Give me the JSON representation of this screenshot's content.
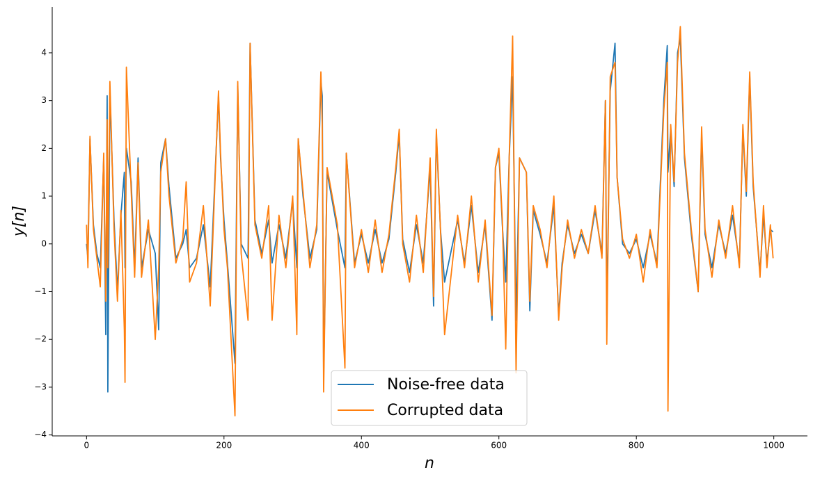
{
  "chart_data": {
    "type": "line",
    "x_label": "n",
    "y_label": "y[n]",
    "x": [
      0,
      2,
      5,
      10,
      15,
      20,
      25,
      28,
      30,
      31,
      34,
      40,
      45,
      50,
      55,
      56,
      58,
      65,
      70,
      75,
      80,
      90,
      100,
      105,
      108,
      115,
      120,
      130,
      140,
      145,
      150,
      160,
      170,
      180,
      192,
      195,
      200,
      205,
      216,
      220,
      225,
      235,
      238,
      245,
      255,
      265,
      270,
      280,
      290,
      300,
      306,
      308,
      315,
      325,
      335,
      341,
      343,
      345,
      350,
      365,
      376,
      378,
      390,
      400,
      410,
      420,
      430,
      440,
      450,
      455,
      460,
      470,
      480,
      490,
      500,
      505,
      509,
      515,
      521,
      540,
      550,
      560,
      570,
      580,
      590,
      595,
      600,
      605,
      610,
      615,
      620,
      625,
      630,
      640,
      645,
      650,
      660,
      670,
      680,
      687,
      692,
      700,
      710,
      720,
      730,
      740,
      750,
      755,
      757,
      762,
      769,
      772,
      780,
      790,
      800,
      810,
      820,
      830,
      840,
      845,
      846,
      850,
      855,
      860,
      864,
      870,
      880,
      890,
      895,
      900,
      910,
      920,
      930,
      940,
      950,
      955,
      960,
      965,
      970,
      980,
      985,
      990,
      995,
      999
    ],
    "series": [
      {
        "name": "Noise-free data",
        "color": "#1f77b4",
        "values": [
          0.0,
          -0.3,
          2.2,
          0.4,
          -0.2,
          -0.5,
          1.8,
          -1.9,
          3.1,
          -3.1,
          3.2,
          0.5,
          -1.0,
          0.6,
          1.5,
          -0.5,
          2.0,
          1.3,
          -0.5,
          1.8,
          -0.5,
          0.3,
          -0.2,
          -1.8,
          1.7,
          2.2,
          1.2,
          -0.3,
          0.0,
          0.3,
          -0.5,
          -0.3,
          0.4,
          -0.9,
          3.1,
          1.8,
          0.5,
          -0.4,
          -2.5,
          3.3,
          0.0,
          -0.3,
          4.2,
          0.5,
          -0.2,
          0.5,
          -0.4,
          0.4,
          -0.3,
          0.9,
          -0.5,
          2.2,
          1.0,
          -0.3,
          0.3,
          3.4,
          3.1,
          -2.8,
          1.5,
          0.3,
          -0.5,
          1.9,
          -0.4,
          0.2,
          -0.4,
          0.3,
          -0.4,
          0.1,
          1.5,
          2.3,
          0.1,
          -0.6,
          0.4,
          -0.4,
          1.6,
          -1.3,
          2.3,
          0.3,
          -0.8,
          0.5,
          -0.4,
          0.8,
          -0.6,
          0.4,
          -1.6,
          1.6,
          1.9,
          0.4,
          -0.8,
          1.8,
          3.5,
          -1.6,
          1.8,
          1.5,
          -1.4,
          0.7,
          0.2,
          -0.4,
          0.8,
          -1.5,
          -0.4,
          0.4,
          -0.2,
          0.2,
          -0.2,
          0.7,
          -0.2,
          3.0,
          -1.5,
          3.2,
          4.2,
          1.4,
          0.0,
          -0.2,
          0.1,
          -0.5,
          0.2,
          -0.4,
          3.0,
          4.15,
          1.5,
          2.4,
          1.2,
          4.0,
          4.3,
          1.8,
          0.2,
          -1.0,
          2.3,
          0.2,
          -0.5,
          0.4,
          -0.2,
          0.6,
          -0.4,
          2.4,
          1.0,
          3.5,
          1.2,
          -0.6,
          0.6,
          -0.4,
          0.3,
          0.25
        ]
      },
      {
        "name": "Corrupted data",
        "color": "#ff7f0e",
        "values": [
          0.4,
          -0.5,
          2.25,
          0.3,
          -0.3,
          -0.9,
          1.9,
          -1.2,
          2.6,
          -0.5,
          3.4,
          0.3,
          -1.2,
          0.7,
          -1.8,
          -2.9,
          3.7,
          1.1,
          -0.7,
          1.7,
          -0.7,
          0.5,
          -2.0,
          -0.5,
          1.5,
          2.2,
          1.0,
          -0.4,
          0.1,
          1.3,
          -0.8,
          -0.4,
          0.8,
          -1.3,
          3.2,
          1.9,
          0.3,
          -0.5,
          -3.6,
          3.4,
          -0.2,
          -1.6,
          4.2,
          0.4,
          -0.3,
          0.8,
          -1.6,
          0.6,
          -0.5,
          1.0,
          -1.9,
          2.2,
          1.1,
          -0.5,
          0.4,
          3.6,
          2.5,
          -3.1,
          1.6,
          0.4,
          -2.6,
          1.9,
          -0.5,
          0.3,
          -0.6,
          0.5,
          -0.6,
          0.2,
          1.6,
          2.4,
          0.0,
          -0.8,
          0.6,
          -0.6,
          1.8,
          -1.1,
          2.4,
          0.3,
          -1.9,
          0.6,
          -0.5,
          1.0,
          -0.8,
          0.5,
          -1.5,
          1.6,
          2.0,
          0.5,
          -2.2,
          1.8,
          4.35,
          -2.7,
          1.8,
          1.5,
          -1.2,
          0.8,
          0.3,
          -0.5,
          1.0,
          -1.6,
          -0.5,
          0.5,
          -0.3,
          0.3,
          -0.2,
          0.8,
          -0.3,
          3.0,
          -2.1,
          3.5,
          3.8,
          1.4,
          0.1,
          -0.3,
          0.2,
          -0.8,
          0.3,
          -0.5,
          2.8,
          3.8,
          -3.5,
          2.5,
          1.3,
          3.8,
          4.55,
          1.9,
          0.3,
          -1.0,
          2.45,
          0.3,
          -0.7,
          0.5,
          -0.3,
          0.8,
          -0.5,
          2.5,
          1.1,
          3.6,
          1.3,
          -0.7,
          0.8,
          -0.5,
          0.4,
          -0.3
        ]
      }
    ],
    "xlim": [
      -49.95,
      1048.95
    ],
    "ylim": [
      -4.02,
      4.96
    ],
    "xticks": [
      0,
      200,
      400,
      600,
      800,
      1000
    ],
    "yticks": [
      {
        "value": -4,
        "label": "−4"
      },
      {
        "value": -3,
        "label": "−3"
      },
      {
        "value": -2,
        "label": "−2"
      },
      {
        "value": -1,
        "label": "−1"
      },
      0,
      1,
      2,
      3,
      4
    ],
    "legend": "lower center"
  }
}
